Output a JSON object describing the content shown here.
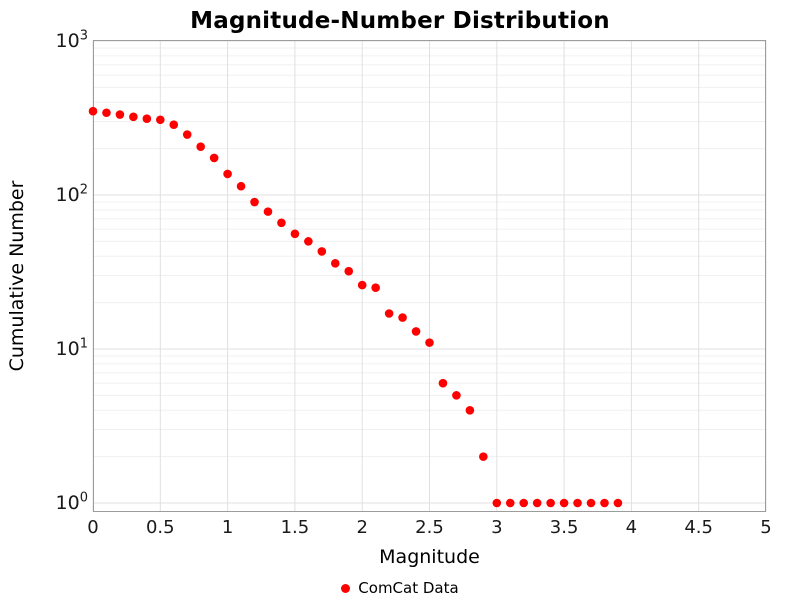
{
  "chart_data": {
    "type": "scatter",
    "title": "Magnitude-Number Distribution",
    "xlabel": "Magnitude",
    "ylabel": "Cumulative Number",
    "y_scale": "log",
    "xlim": [
      0,
      5
    ],
    "ylim": [
      0.87,
      1000
    ],
    "x_ticks": [
      0,
      0.5,
      1,
      1.5,
      2,
      2.5,
      3,
      3.5,
      4,
      4.5,
      5
    ],
    "x_tick_labels": [
      "0",
      "0.5",
      "1",
      "1.5",
      "2",
      "2.5",
      "3",
      "3.5",
      "4",
      "4.5",
      "5"
    ],
    "y_tick_exponents": [
      0,
      1,
      2,
      3
    ],
    "grid": {
      "show": true,
      "major_color": "#e0e0e0",
      "minor_color": "#f0f0f0"
    },
    "axis_color": "#9c9c9c",
    "legend_position": "bottom-center",
    "series": [
      {
        "name": "ComCat Data",
        "color": "#ff0000",
        "marker": "circle",
        "marker_radius": 4.3,
        "x": [
          0.0,
          0.1,
          0.2,
          0.3,
          0.4,
          0.5,
          0.6,
          0.7,
          0.8,
          0.9,
          1.0,
          1.1,
          1.2,
          1.3,
          1.4,
          1.5,
          1.6,
          1.7,
          1.8,
          1.9,
          2.0,
          2.1,
          2.2,
          2.3,
          2.4,
          2.5,
          2.6,
          2.7,
          2.8,
          2.9,
          3.0,
          3.1,
          3.2,
          3.3,
          3.4,
          3.5,
          3.6,
          3.7,
          3.8,
          3.9
        ],
        "y": [
          350,
          342,
          333,
          322,
          313,
          308,
          286,
          247,
          206,
          174,
          137,
          114,
          90,
          78,
          66,
          56,
          50,
          43,
          36,
          32,
          26,
          25,
          17,
          16,
          13,
          11,
          6,
          5,
          4,
          2,
          1,
          1,
          1,
          1,
          1,
          1,
          1,
          1,
          1,
          1
        ]
      }
    ]
  }
}
